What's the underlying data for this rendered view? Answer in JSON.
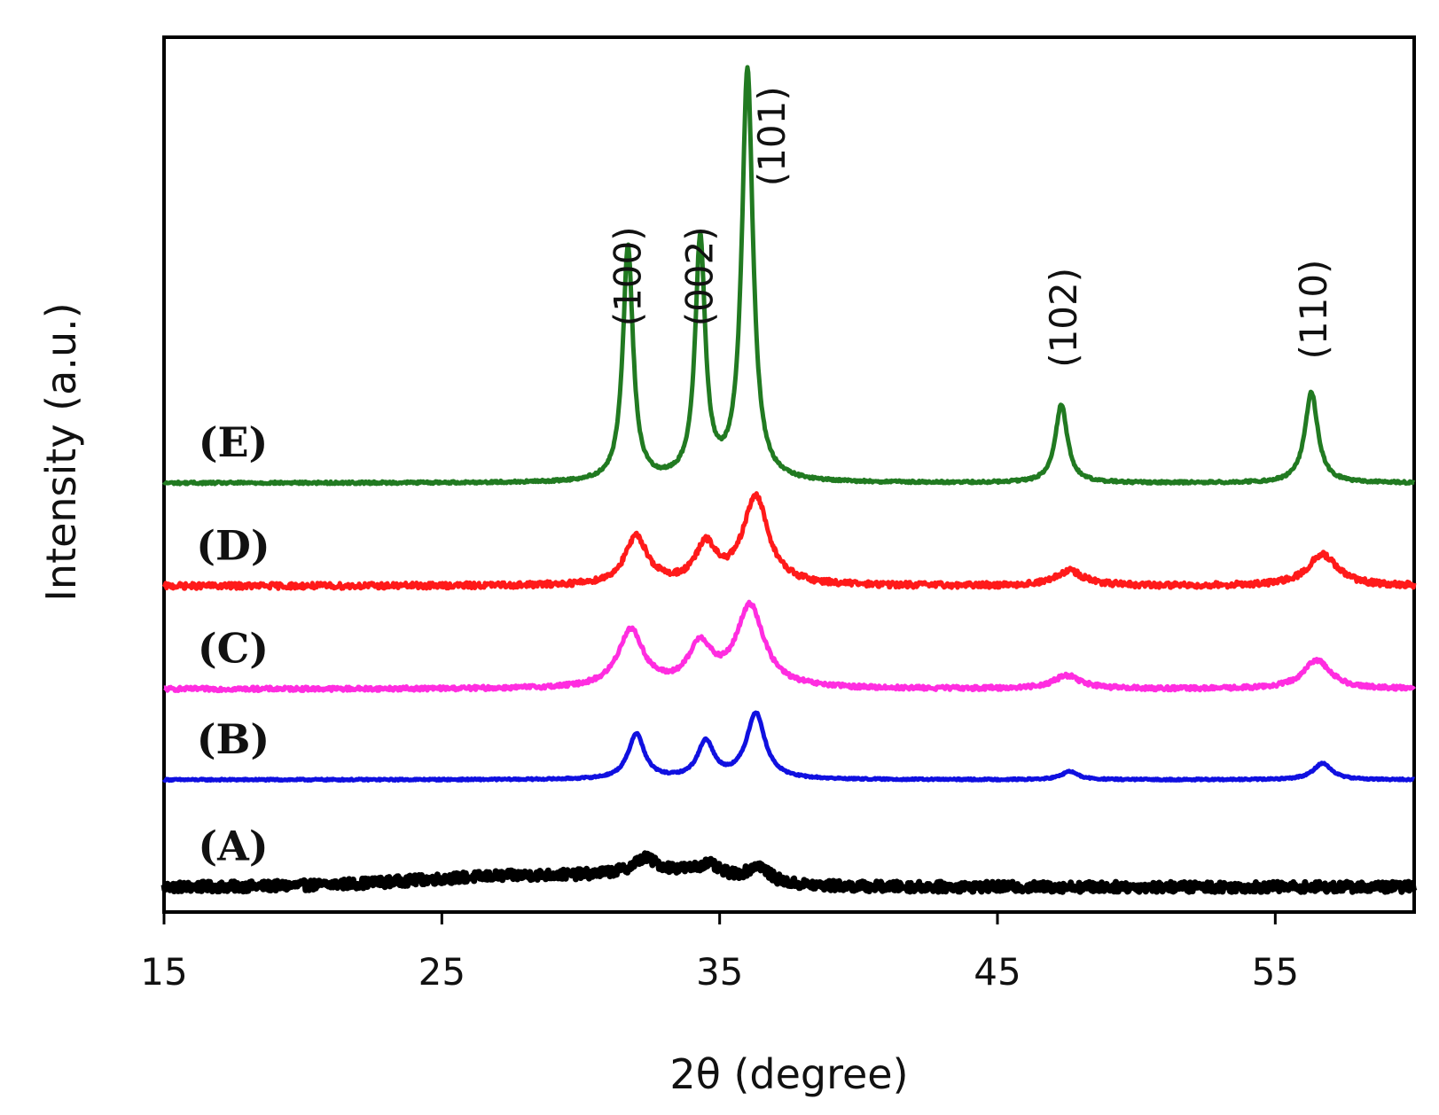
{
  "chart_data": {
    "type": "line",
    "title": "",
    "xlabel": "2θ (degree)",
    "ylabel": "Intensity (a.u.)",
    "xlim": [
      15,
      60
    ],
    "x_ticks": [
      15,
      25,
      35,
      45,
      55
    ],
    "x_tick_labels": [
      "15",
      "25",
      "35",
      "45",
      "55"
    ],
    "y_ticks_shown": false,
    "ylim": [
      0,
      100
    ],
    "series": [
      {
        "name": "(A)",
        "label": "(A)",
        "color": "#000000",
        "baseline": 1,
        "noise": 0.6,
        "humps": [
          {
            "center": 28.5,
            "height": 1.4,
            "width": 6.0
          },
          {
            "center": 33.5,
            "height": 1.2,
            "width": 2.5
          }
        ],
        "peaks": [
          {
            "center": 32.3,
            "height": 1.6,
            "width": 0.45
          },
          {
            "center": 34.6,
            "height": 1.2,
            "width": 0.45
          },
          {
            "center": 36.4,
            "height": 2.0,
            "width": 0.45
          }
        ]
      },
      {
        "name": "(B)",
        "label": "(B)",
        "color": "#1010e0",
        "baseline": 14,
        "noise": 0.1,
        "humps": [],
        "peaks": [
          {
            "center": 32.0,
            "height": 5.5,
            "width": 0.35
          },
          {
            "center": 34.5,
            "height": 4.5,
            "width": 0.35
          },
          {
            "center": 36.3,
            "height": 8.0,
            "width": 0.4
          },
          {
            "center": 47.6,
            "height": 1.0,
            "width": 0.35
          },
          {
            "center": 56.7,
            "height": 2.0,
            "width": 0.4
          }
        ]
      },
      {
        "name": "(C)",
        "label": "(C)",
        "color": "#ff2de0",
        "baseline": 25,
        "noise": 0.25,
        "humps": [],
        "peaks": [
          {
            "center": 31.8,
            "height": 7.0,
            "width": 0.55
          },
          {
            "center": 34.3,
            "height": 5.0,
            "width": 0.5
          },
          {
            "center": 36.1,
            "height": 9.9,
            "width": 0.6
          },
          {
            "center": 47.5,
            "height": 1.6,
            "width": 0.6
          },
          {
            "center": 56.5,
            "height": 3.5,
            "width": 0.6
          }
        ]
      },
      {
        "name": "(D)",
        "label": "(D)",
        "color": "#ff1a1a",
        "baseline": 37.5,
        "noise": 0.35,
        "humps": [],
        "peaks": [
          {
            "center": 32.0,
            "height": 5.8,
            "width": 0.5
          },
          {
            "center": 34.5,
            "height": 4.6,
            "width": 0.45
          },
          {
            "center": 36.3,
            "height": 10.7,
            "width": 0.55
          },
          {
            "center": 47.6,
            "height": 1.8,
            "width": 0.6
          },
          {
            "center": 56.7,
            "height": 3.8,
            "width": 0.65
          }
        ]
      },
      {
        "name": "(E)",
        "label": "(E)",
        "color": "#217a21",
        "baseline": 50,
        "noise": 0.15,
        "humps": [],
        "peaks": [
          {
            "center": 31.7,
            "height": 28.5,
            "width": 0.22
          },
          {
            "center": 34.3,
            "height": 29.0,
            "width": 0.22
          },
          {
            "center": 36.0,
            "height": 50.0,
            "width": 0.24
          },
          {
            "center": 47.3,
            "height": 9.5,
            "width": 0.26
          },
          {
            "center": 56.3,
            "height": 11.0,
            "width": 0.28
          }
        ]
      }
    ],
    "annotations": [
      {
        "text": "(100)",
        "x": 31.7,
        "y": 69
      },
      {
        "text": "(002)",
        "x": 34.3,
        "y": 69
      },
      {
        "text": "(101)",
        "x": 36.9,
        "y": 86
      },
      {
        "text": "(102)",
        "x": 47.4,
        "y": 64
      },
      {
        "text": "(110)",
        "x": 56.4,
        "y": 65
      }
    ]
  }
}
